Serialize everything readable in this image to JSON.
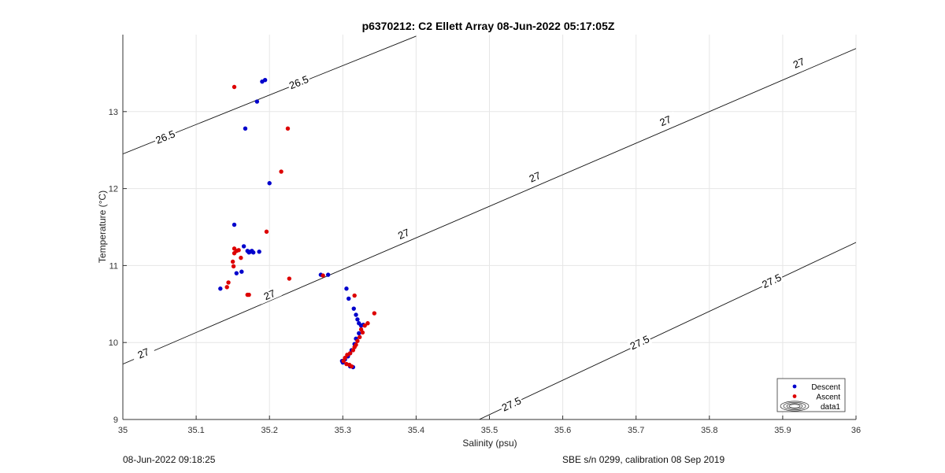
{
  "chart_data": {
    "type": "scatter",
    "title": "p6370212: C2 Ellett Array 08-Jun-2022 05:17:05Z",
    "xlabel": "Salinity (psu)",
    "ylabel": "Temperature (°C)",
    "xlim": [
      35,
      36
    ],
    "ylim": [
      9,
      14
    ],
    "xticks": [
      "35",
      "35.1",
      "35.2",
      "35.3",
      "35.4",
      "35.5",
      "35.6",
      "35.7",
      "35.8",
      "35.9",
      "36"
    ],
    "yticks": [
      "9",
      "10",
      "11",
      "12",
      "13"
    ],
    "grid": true,
    "legend_position": "bottom-right",
    "legend": [
      {
        "name": "Descent",
        "color": "#0000cc"
      },
      {
        "name": "Ascent",
        "color": "#dd0000"
      },
      {
        "name": "data1",
        "color": "#000000"
      }
    ],
    "contours": [
      {
        "label": "26.5",
        "points": [
          [
            35,
            12.45
          ],
          [
            35.4,
            13.98
          ]
        ],
        "label_positions": [
          [
            35.058,
            12.67
          ],
          [
            35.24,
            13.38
          ]
        ]
      },
      {
        "label": "27",
        "points": [
          [
            35,
            9.72
          ],
          [
            36,
            13.82
          ]
        ],
        "label_positions": [
          [
            35.028,
            9.86
          ],
          [
            35.2,
            10.62
          ],
          [
            35.383,
            11.41
          ],
          [
            35.562,
            12.15
          ],
          [
            35.74,
            12.88
          ],
          [
            35.922,
            13.63
          ]
        ]
      },
      {
        "label": "27.5",
        "points": [
          [
            35.486,
            9.0
          ],
          [
            36,
            11.3
          ]
        ],
        "label_positions": [
          [
            35.53,
            9.2
          ],
          [
            35.705,
            10.0
          ],
          [
            35.885,
            10.8
          ]
        ]
      }
    ],
    "series": [
      {
        "name": "Descent",
        "color": "#0000cc",
        "points": [
          [
            35.19,
            13.39
          ],
          [
            35.194,
            13.41
          ],
          [
            35.183,
            13.13
          ],
          [
            35.167,
            12.78
          ],
          [
            35.2,
            12.07
          ],
          [
            35.152,
            11.53
          ],
          [
            35.165,
            11.25
          ],
          [
            35.17,
            11.19
          ],
          [
            35.174,
            11.18
          ],
          [
            35.176,
            11.19
          ],
          [
            35.172,
            11.17
          ],
          [
            35.178,
            11.17
          ],
          [
            35.186,
            11.18
          ],
          [
            35.155,
            10.9
          ],
          [
            35.162,
            10.92
          ],
          [
            35.133,
            10.7
          ],
          [
            35.27,
            10.88
          ],
          [
            35.28,
            10.88
          ],
          [
            35.305,
            10.7
          ],
          [
            35.308,
            10.57
          ],
          [
            35.315,
            10.44
          ],
          [
            35.318,
            10.36
          ],
          [
            35.32,
            10.3
          ],
          [
            35.322,
            10.25
          ],
          [
            35.325,
            10.22
          ],
          [
            35.328,
            10.23
          ],
          [
            35.322,
            10.12
          ],
          [
            35.318,
            10.05
          ],
          [
            35.316,
            9.98
          ],
          [
            35.312,
            9.9
          ],
          [
            35.31,
            9.86
          ],
          [
            35.307,
            9.82
          ],
          [
            35.303,
            9.78
          ],
          [
            35.299,
            9.76
          ],
          [
            35.3,
            9.74
          ],
          [
            35.31,
            9.69
          ],
          [
            35.314,
            9.68
          ]
        ]
      },
      {
        "name": "Ascent",
        "color": "#dd0000",
        "points": [
          [
            35.152,
            13.32
          ],
          [
            35.225,
            12.78
          ],
          [
            35.216,
            12.22
          ],
          [
            35.196,
            11.44
          ],
          [
            35.152,
            11.22
          ],
          [
            35.155,
            11.19
          ],
          [
            35.158,
            11.2
          ],
          [
            35.152,
            11.16
          ],
          [
            35.161,
            11.1
          ],
          [
            35.15,
            11.05
          ],
          [
            35.151,
            10.99
          ],
          [
            35.144,
            10.78
          ],
          [
            35.142,
            10.72
          ],
          [
            35.17,
            10.62
          ],
          [
            35.172,
            10.62
          ],
          [
            35.227,
            10.83
          ],
          [
            35.273,
            10.87
          ],
          [
            35.316,
            10.61
          ],
          [
            35.343,
            10.38
          ],
          [
            35.334,
            10.25
          ],
          [
            35.33,
            10.22
          ],
          [
            35.325,
            10.17
          ],
          [
            35.327,
            10.13
          ],
          [
            35.323,
            10.07
          ],
          [
            35.32,
            10.02
          ],
          [
            35.318,
            9.97
          ],
          [
            35.316,
            9.94
          ],
          [
            35.314,
            9.9
          ],
          [
            35.31,
            9.86
          ],
          [
            35.306,
            9.84
          ],
          [
            35.303,
            9.8
          ],
          [
            35.301,
            9.76
          ],
          [
            35.305,
            9.72
          ],
          [
            35.309,
            9.71
          ],
          [
            35.312,
            9.69
          ]
        ]
      }
    ]
  },
  "footer": {
    "left": "08-Jun-2022 09:18:25",
    "right": "SBE s/n 0299, calibration 08 Sep 2019"
  }
}
